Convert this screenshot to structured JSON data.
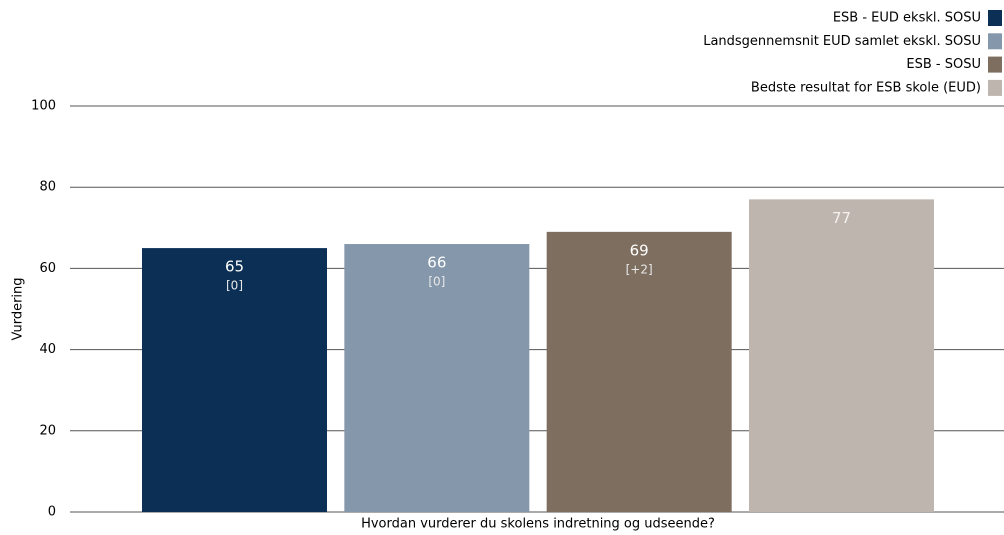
{
  "chart_data": {
    "type": "bar",
    "x_label": "Hvordan vurderer du skolens indretning og udseende?",
    "y_label": "Vurdering",
    "categories": [
      null
    ],
    "series": [
      {
        "name": "ESB - EUD ekskl. SOSU",
        "color": "#0b2f55",
        "values": [
          65
        ],
        "sublabel": "[0]"
      },
      {
        "name": "Landsgennemsnit EUD samlet ekskl. SOSU",
        "color": "#8597ab",
        "values": [
          66
        ],
        "sublabel": "[0]"
      },
      {
        "name": "ESB - SOSU",
        "color": "#7d6e5f",
        "values": [
          69
        ],
        "sublabel": "[+2]"
      },
      {
        "name": "Bedste resultat for ESB skole (EUD)",
        "color": "#beb5ae",
        "values": [
          77
        ]
      }
    ],
    "ylim": [
      0,
      100
    ],
    "yticks": [
      0,
      20,
      40,
      60,
      80,
      100
    ],
    "grid": true,
    "legend": "top-right"
  }
}
